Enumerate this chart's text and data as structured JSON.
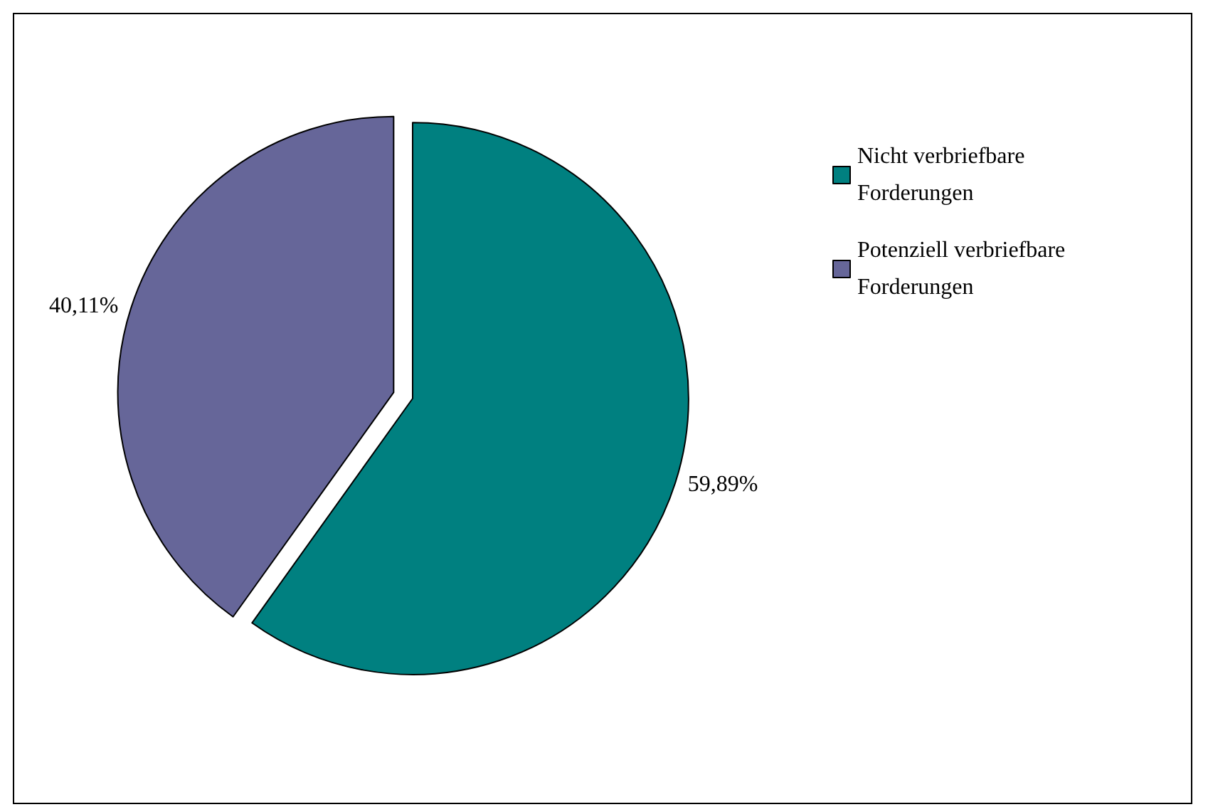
{
  "chart_data": {
    "type": "pie",
    "categories": [
      "Nicht verbriefbare Forderungen",
      "Potenziell verbriefbare Forderungen"
    ],
    "values": [
      59.89,
      40.11
    ],
    "colors": [
      "#008080",
      "#666699"
    ],
    "value_labels": [
      "59,89%",
      "40,11%"
    ],
    "legend": "top right"
  }
}
